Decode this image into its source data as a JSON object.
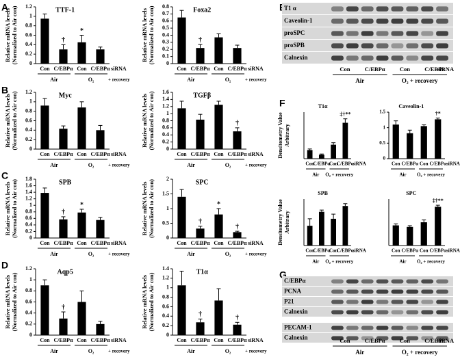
{
  "panel_labels": [
    "A",
    "B",
    "C",
    "D",
    "E",
    "F",
    "G"
  ],
  "chart_data": [
    {
      "type": "bar",
      "title": "TTF-1",
      "ylabel": [
        "Relative mRNA levels",
        "(Normalized to Air con)"
      ],
      "categories": [
        "Con",
        "C/EBPα",
        "Con",
        "C/EBPα"
      ],
      "suffix_label": "siRNA",
      "groups": [
        "Air",
        "O₂"
      ],
      "group_note": "+ recovery",
      "values": [
        0.95,
        0.3,
        0.45,
        0.3
      ],
      "errors": [
        0.1,
        0.1,
        0.15,
        0.05
      ],
      "annotations": [
        null,
        "†",
        "*",
        null
      ],
      "ylim": [
        0,
        1.2
      ],
      "yticks": [
        0,
        0.2,
        0.4,
        0.6,
        0.8,
        1,
        1.2
      ],
      "color": "#000000"
    },
    {
      "type": "bar",
      "title": "Foxa2",
      "ylabel": [
        "Relative mRNA levels",
        "(Normalized to Air con)"
      ],
      "categories": [
        "Con",
        "C/EBPα",
        "Con",
        "C/EBPα"
      ],
      "suffix_label": "siRNA",
      "groups": [
        "Air",
        "O₂"
      ],
      "group_note": "+ recovery",
      "values": [
        0.65,
        0.22,
        0.37,
        0.22
      ],
      "errors": [
        0.1,
        0.05,
        0.05,
        0.04
      ],
      "annotations": [
        null,
        "†",
        null,
        null
      ],
      "ylim": [
        0,
        0.8
      ],
      "yticks": [
        0,
        0.1,
        0.2,
        0.3,
        0.4,
        0.5,
        0.6,
        0.7,
        0.8
      ],
      "color": "#000000"
    },
    {
      "type": "bar",
      "title": "Myc",
      "ylabel": [
        "Relative mRNA levels",
        "(Normalized to Air con)"
      ],
      "categories": [
        "Con",
        "C/EBPα",
        "Con",
        "C/EBPα"
      ],
      "suffix_label": "siRNA",
      "groups": [
        "Air",
        "O₂"
      ],
      "group_note": "+ recovery",
      "values": [
        0.92,
        0.43,
        0.88,
        0.4
      ],
      "errors": [
        0.15,
        0.06,
        0.12,
        0.1
      ],
      "annotations": [
        null,
        null,
        null,
        null
      ],
      "ylim": [
        0,
        1.2
      ],
      "yticks": [
        0,
        0.2,
        0.4,
        0.6,
        0.8,
        1,
        1.2
      ],
      "color": "#000000"
    },
    {
      "type": "bar",
      "title": "TGFβ",
      "ylabel": [
        "Relative mRNA levels",
        "(Normalized to Air con)"
      ],
      "categories": [
        "Con",
        "C/EBPα",
        "Con",
        "C/EBPα"
      ],
      "suffix_label": "siRNA",
      "groups": [
        "Air",
        "O₂"
      ],
      "group_note": "+ recovery",
      "values": [
        1.15,
        0.83,
        1.25,
        0.5
      ],
      "errors": [
        0.2,
        0.15,
        0.1,
        0.1
      ],
      "annotations": [
        null,
        null,
        null,
        "†"
      ],
      "ylim": [
        0,
        1.6
      ],
      "yticks": [
        0,
        0.2,
        0.4,
        0.6,
        0.8,
        1,
        1.2,
        1.4,
        1.6
      ],
      "color": "#000000"
    },
    {
      "type": "bar",
      "title": "SPB",
      "ylabel": [
        "Relative mRNA levels",
        "(Normalized to Air con)"
      ],
      "categories": [
        "Con",
        "C/EBPα",
        "Con",
        "C/EBPα"
      ],
      "suffix_label": "siRNA",
      "groups": [
        "Air",
        "O₂"
      ],
      "group_note": "+ recovery",
      "values": [
        1.38,
        0.57,
        0.78,
        0.55
      ],
      "errors": [
        0.15,
        0.08,
        0.1,
        0.08
      ],
      "annotations": [
        null,
        "†",
        "*",
        null
      ],
      "ylim": [
        0,
        1.8
      ],
      "yticks": [
        0,
        0.2,
        0.4,
        0.6,
        0.8,
        1,
        1.2,
        1.4,
        1.6,
        1.8
      ],
      "color": "#000000"
    },
    {
      "type": "bar",
      "title": "SPC",
      "ylabel": [
        "Relative mRNA levels",
        "(Normalized to Air con)"
      ],
      "categories": [
        "Con",
        "C/EBPα",
        "Con",
        "C/EBPα"
      ],
      "suffix_label": "siRNA",
      "groups": [
        "Air",
        "O₂"
      ],
      "group_note": "+ recovery",
      "values": [
        1.4,
        0.32,
        0.8,
        0.2
      ],
      "errors": [
        0.25,
        0.08,
        0.2,
        0.03
      ],
      "annotations": [
        null,
        "†",
        "*",
        "†"
      ],
      "ylim": [
        0,
        2
      ],
      "yticks": [
        0,
        0.5,
        1,
        1.5,
        2
      ],
      "color": "#000000"
    },
    {
      "type": "bar",
      "title": "Aqp5",
      "ylabel": [
        "Relative mRNA levels",
        "(Normalized to Air con)"
      ],
      "categories": [
        "Con",
        "C/EBPα",
        "Con",
        "C/EBPα"
      ],
      "suffix_label": "siRNA",
      "groups": [
        "Air",
        "O₂"
      ],
      "group_note": "+ recovery",
      "values": [
        0.9,
        0.3,
        0.6,
        0.2
      ],
      "errors": [
        0.1,
        0.12,
        0.2,
        0.05
      ],
      "annotations": [
        null,
        "†",
        null,
        null
      ],
      "ylim": [
        0,
        1.2
      ],
      "yticks": [
        0,
        0.2,
        0.4,
        0.6,
        0.8,
        1,
        1.2
      ],
      "color": "#000000"
    },
    {
      "type": "bar",
      "title": "T1α",
      "ylabel": [
        "Relative mRNA levels",
        "(Normalized to Air con)"
      ],
      "categories": [
        "Con",
        "C/EBPα",
        "Con",
        "C/EBPα"
      ],
      "suffix_label": "siRNA",
      "groups": [
        "Air",
        "O₂"
      ],
      "group_note": "+ recovery",
      "values": [
        1.05,
        0.27,
        0.73,
        0.22
      ],
      "errors": [
        0.3,
        0.07,
        0.25,
        0.05
      ],
      "annotations": [
        null,
        "†",
        null,
        "†"
      ],
      "ylim": [
        0,
        1.4
      ],
      "yticks": [
        0,
        0.2,
        0.4,
        0.6,
        0.8,
        1,
        1.2,
        1.4
      ],
      "color": "#000000"
    },
    {
      "type": "bar",
      "title": "T1α",
      "ylabel": [
        "Densitometry Value",
        "Arbitrary"
      ],
      "categories": [
        "Con",
        "C/EBPα",
        "Con",
        "C/EBPα"
      ],
      "suffix_label": "siRNA",
      "groups": [
        "Air",
        "O₂ + recovery"
      ],
      "values": [
        0.65,
        0.3,
        1.05,
        2.7
      ],
      "errors": [
        0.08,
        0.05,
        0.15,
        0.3
      ],
      "annotations": [
        null,
        null,
        null,
        "‡†**"
      ],
      "ylim": [
        0,
        3.5
      ],
      "color": "#000000"
    },
    {
      "type": "bar",
      "title": "Caveolin-1",
      "categories": [
        "Con",
        "C/EBPα",
        "Con",
        "C/EBPα"
      ],
      "suffix_label": "siRNA",
      "groups": [
        "Air",
        "O₂ + recovery"
      ],
      "values": [
        1.1,
        0.82,
        1.05,
        1.27
      ],
      "errors": [
        0.12,
        0.1,
        0.04,
        0.04
      ],
      "annotations": [
        null,
        null,
        null,
        "†*"
      ],
      "ylim": [
        0,
        1.5
      ],
      "yticks": [
        0,
        0.5,
        1,
        1.5
      ],
      "color": "#000000"
    },
    {
      "type": "bar",
      "title": "SPB",
      "ylabel": [
        "Densitometry Value",
        "Arbitrary"
      ],
      "categories": [
        "Con",
        "C/EBPα",
        "Con",
        "C/EBPα"
      ],
      "suffix_label": "siRNA",
      "groups": [
        "Air",
        "O₂ + recovery"
      ],
      "values": [
        1.7,
        2.9,
        2.3,
        3.4
      ],
      "errors": [
        0.6,
        0.15,
        0.4,
        0.2
      ],
      "annotations": [
        null,
        null,
        null,
        null
      ],
      "ylim": [
        0,
        4
      ],
      "color": "#000000"
    },
    {
      "type": "bar",
      "title": "SPC",
      "categories": [
        "Con",
        "C/EBPα",
        "Con",
        "C/EBPα"
      ],
      "suffix_label": "siRNA",
      "groups": [
        "Air",
        "O₂ + recovery"
      ],
      "values": [
        1.3,
        1.2,
        1.5,
        2.5
      ],
      "errors": [
        0.1,
        0.08,
        0.15,
        0.1
      ],
      "annotations": [
        null,
        null,
        null,
        "‡†**"
      ],
      "ylim": [
        0,
        3
      ],
      "color": "#000000"
    }
  ],
  "blots": [
    {
      "rows": [
        "T1 α",
        "Caveolin-1",
        "proSPC",
        "proSPB",
        "Calnexin"
      ],
      "categories": [
        "Con",
        "C/EBPα",
        "Con",
        "C/EBPα"
      ],
      "suffix_label": "siRNA",
      "groups": [
        "Air",
        "O₂ + recovery"
      ]
    },
    {
      "rows": [
        "C/EBPα",
        "PCNA",
        "P21",
        "Calnexin",
        "PECAM-1",
        "Calnexin"
      ],
      "categories": [
        "Con",
        "C/EBPα",
        "Con",
        "C/EBPα"
      ],
      "suffix_label": "siRNA",
      "groups": [
        "Air",
        "O₂ + recovery"
      ]
    }
  ]
}
